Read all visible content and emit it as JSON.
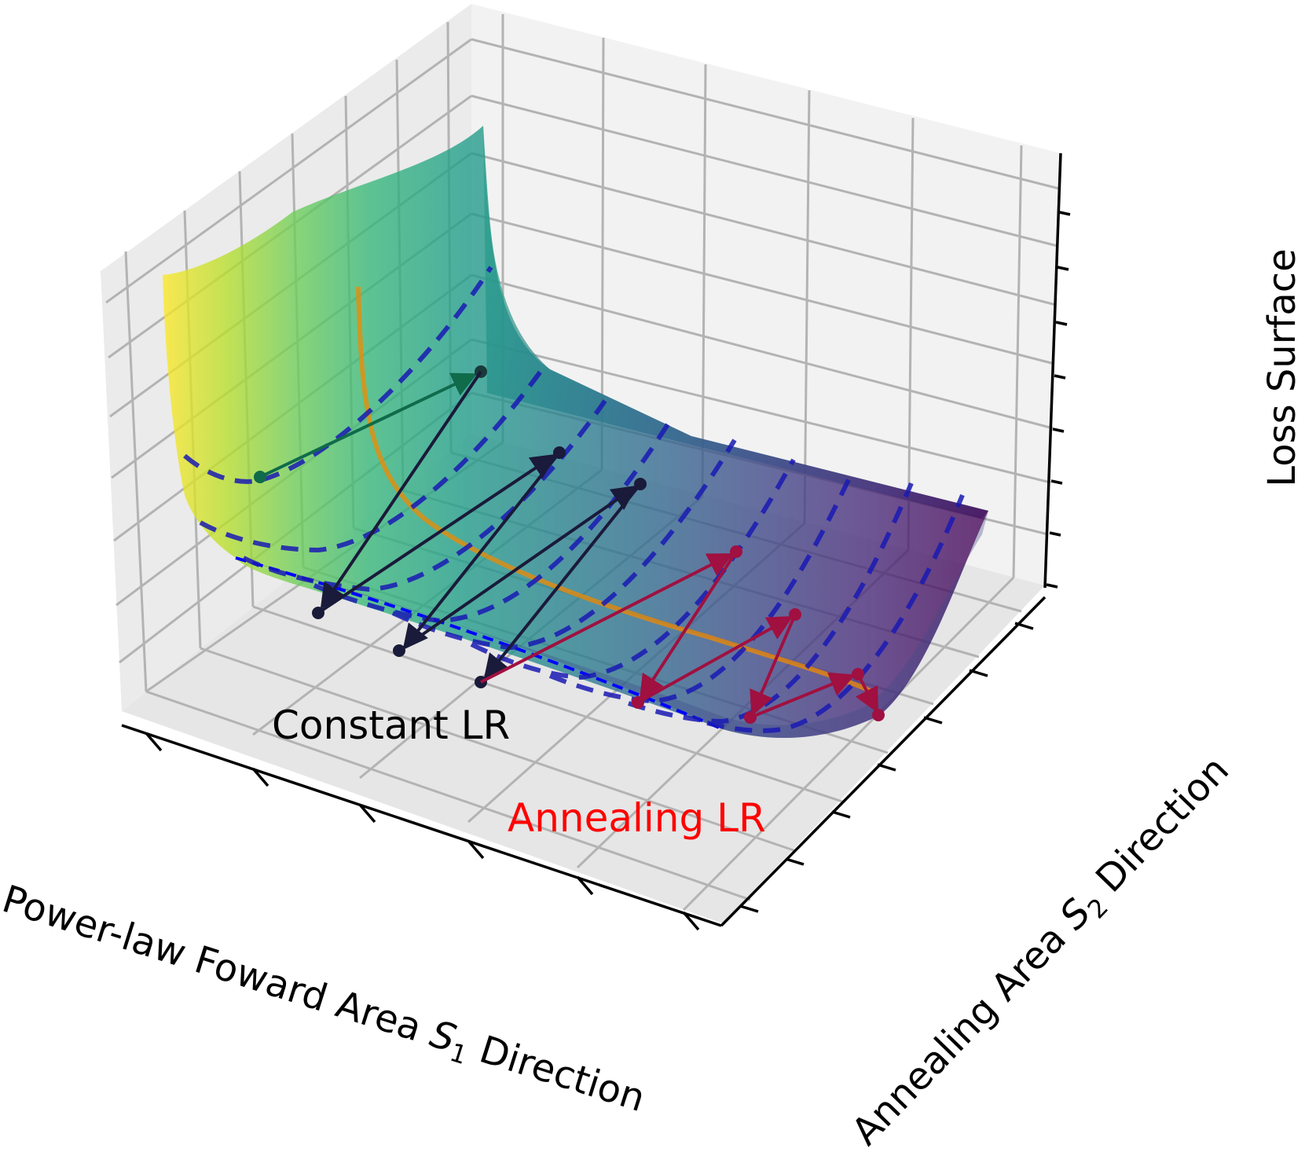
{
  "figure": {
    "zlabel": "Loss Surface",
    "xlabel_pre": "Power-law Foward Area ",
    "xlabel_var": "S",
    "xlabel_sub": "1",
    "xlabel_post": " Direction",
    "ylabel_pre": "Annealing Area ",
    "ylabel_var": "S",
    "ylabel_sub": "2",
    "ylabel_post": " Direction",
    "annotation_constant": "Constant LR",
    "annotation_annealing": "Annealing LR"
  },
  "colors": {
    "constant_lr": "#000000",
    "annealing_lr": "#ff0000",
    "constant_path": "#1a1a3a",
    "annealing_path": "#a01040",
    "early_path": "#0f6b4a",
    "valley_line": "#f08a00",
    "cross_sections": "#1a1ab4",
    "pane": "#f2f2f2",
    "grid": "#b0b0b0"
  },
  "legend": {
    "constant_path_label": "Constant LR",
    "annealing_path_label": "Annealing LR"
  }
}
